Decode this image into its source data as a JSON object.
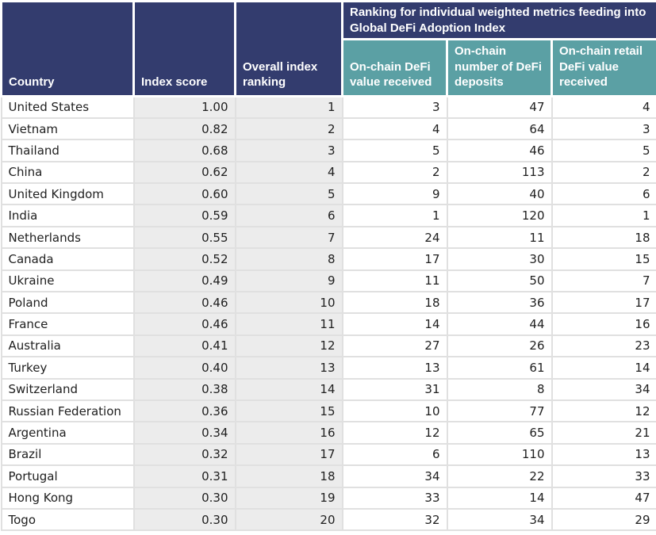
{
  "chart_data": {
    "type": "table",
    "group_header": "Ranking for individual weighted metrics feeding into Global DeFi Adoption Index",
    "columns": [
      "Country",
      "Index score",
      "Overall index ranking",
      "On-chain DeFi value received",
      "On-chain number of DeFi deposits",
      "On-chain retail DeFi value received"
    ],
    "rows": [
      [
        "United States",
        "1.00",
        "1",
        "3",
        "47",
        "4"
      ],
      [
        "Vietnam",
        "0.82",
        "2",
        "4",
        "64",
        "3"
      ],
      [
        "Thailand",
        "0.68",
        "3",
        "5",
        "46",
        "5"
      ],
      [
        "China",
        "0.62",
        "4",
        "2",
        "113",
        "2"
      ],
      [
        "United Kingdom",
        "0.60",
        "5",
        "9",
        "40",
        "6"
      ],
      [
        "India",
        "0.59",
        "6",
        "1",
        "120",
        "1"
      ],
      [
        "Netherlands",
        "0.55",
        "7",
        "24",
        "11",
        "18"
      ],
      [
        "Canada",
        "0.52",
        "8",
        "17",
        "30",
        "15"
      ],
      [
        "Ukraine",
        "0.49",
        "9",
        "11",
        "50",
        "7"
      ],
      [
        "Poland",
        "0.46",
        "10",
        "18",
        "36",
        "17"
      ],
      [
        "France",
        "0.46",
        "11",
        "14",
        "44",
        "16"
      ],
      [
        "Australia",
        "0.41",
        "12",
        "27",
        "26",
        "23"
      ],
      [
        "Turkey",
        "0.40",
        "13",
        "13",
        "61",
        "14"
      ],
      [
        "Switzerland",
        "0.38",
        "14",
        "31",
        "8",
        "34"
      ],
      [
        "Russian Federation",
        "0.36",
        "15",
        "10",
        "77",
        "12"
      ],
      [
        "Argentina",
        "0.34",
        "16",
        "12",
        "65",
        "21"
      ],
      [
        "Brazil",
        "0.32",
        "17",
        "6",
        "110",
        "13"
      ],
      [
        "Portugal",
        "0.31",
        "18",
        "34",
        "22",
        "33"
      ],
      [
        "Hong Kong",
        "0.30",
        "19",
        "33",
        "14",
        "47"
      ],
      [
        "Togo",
        "0.30",
        "20",
        "32",
        "34",
        "29"
      ]
    ]
  },
  "colors": {
    "header_navy": "#333C6E",
    "subheader_teal": "#5BA0A4",
    "stripe_gray": "#ECECEC",
    "grid_line": "#E0E0E0",
    "header_text": "#FFFFFF",
    "body_text": "#202020"
  }
}
